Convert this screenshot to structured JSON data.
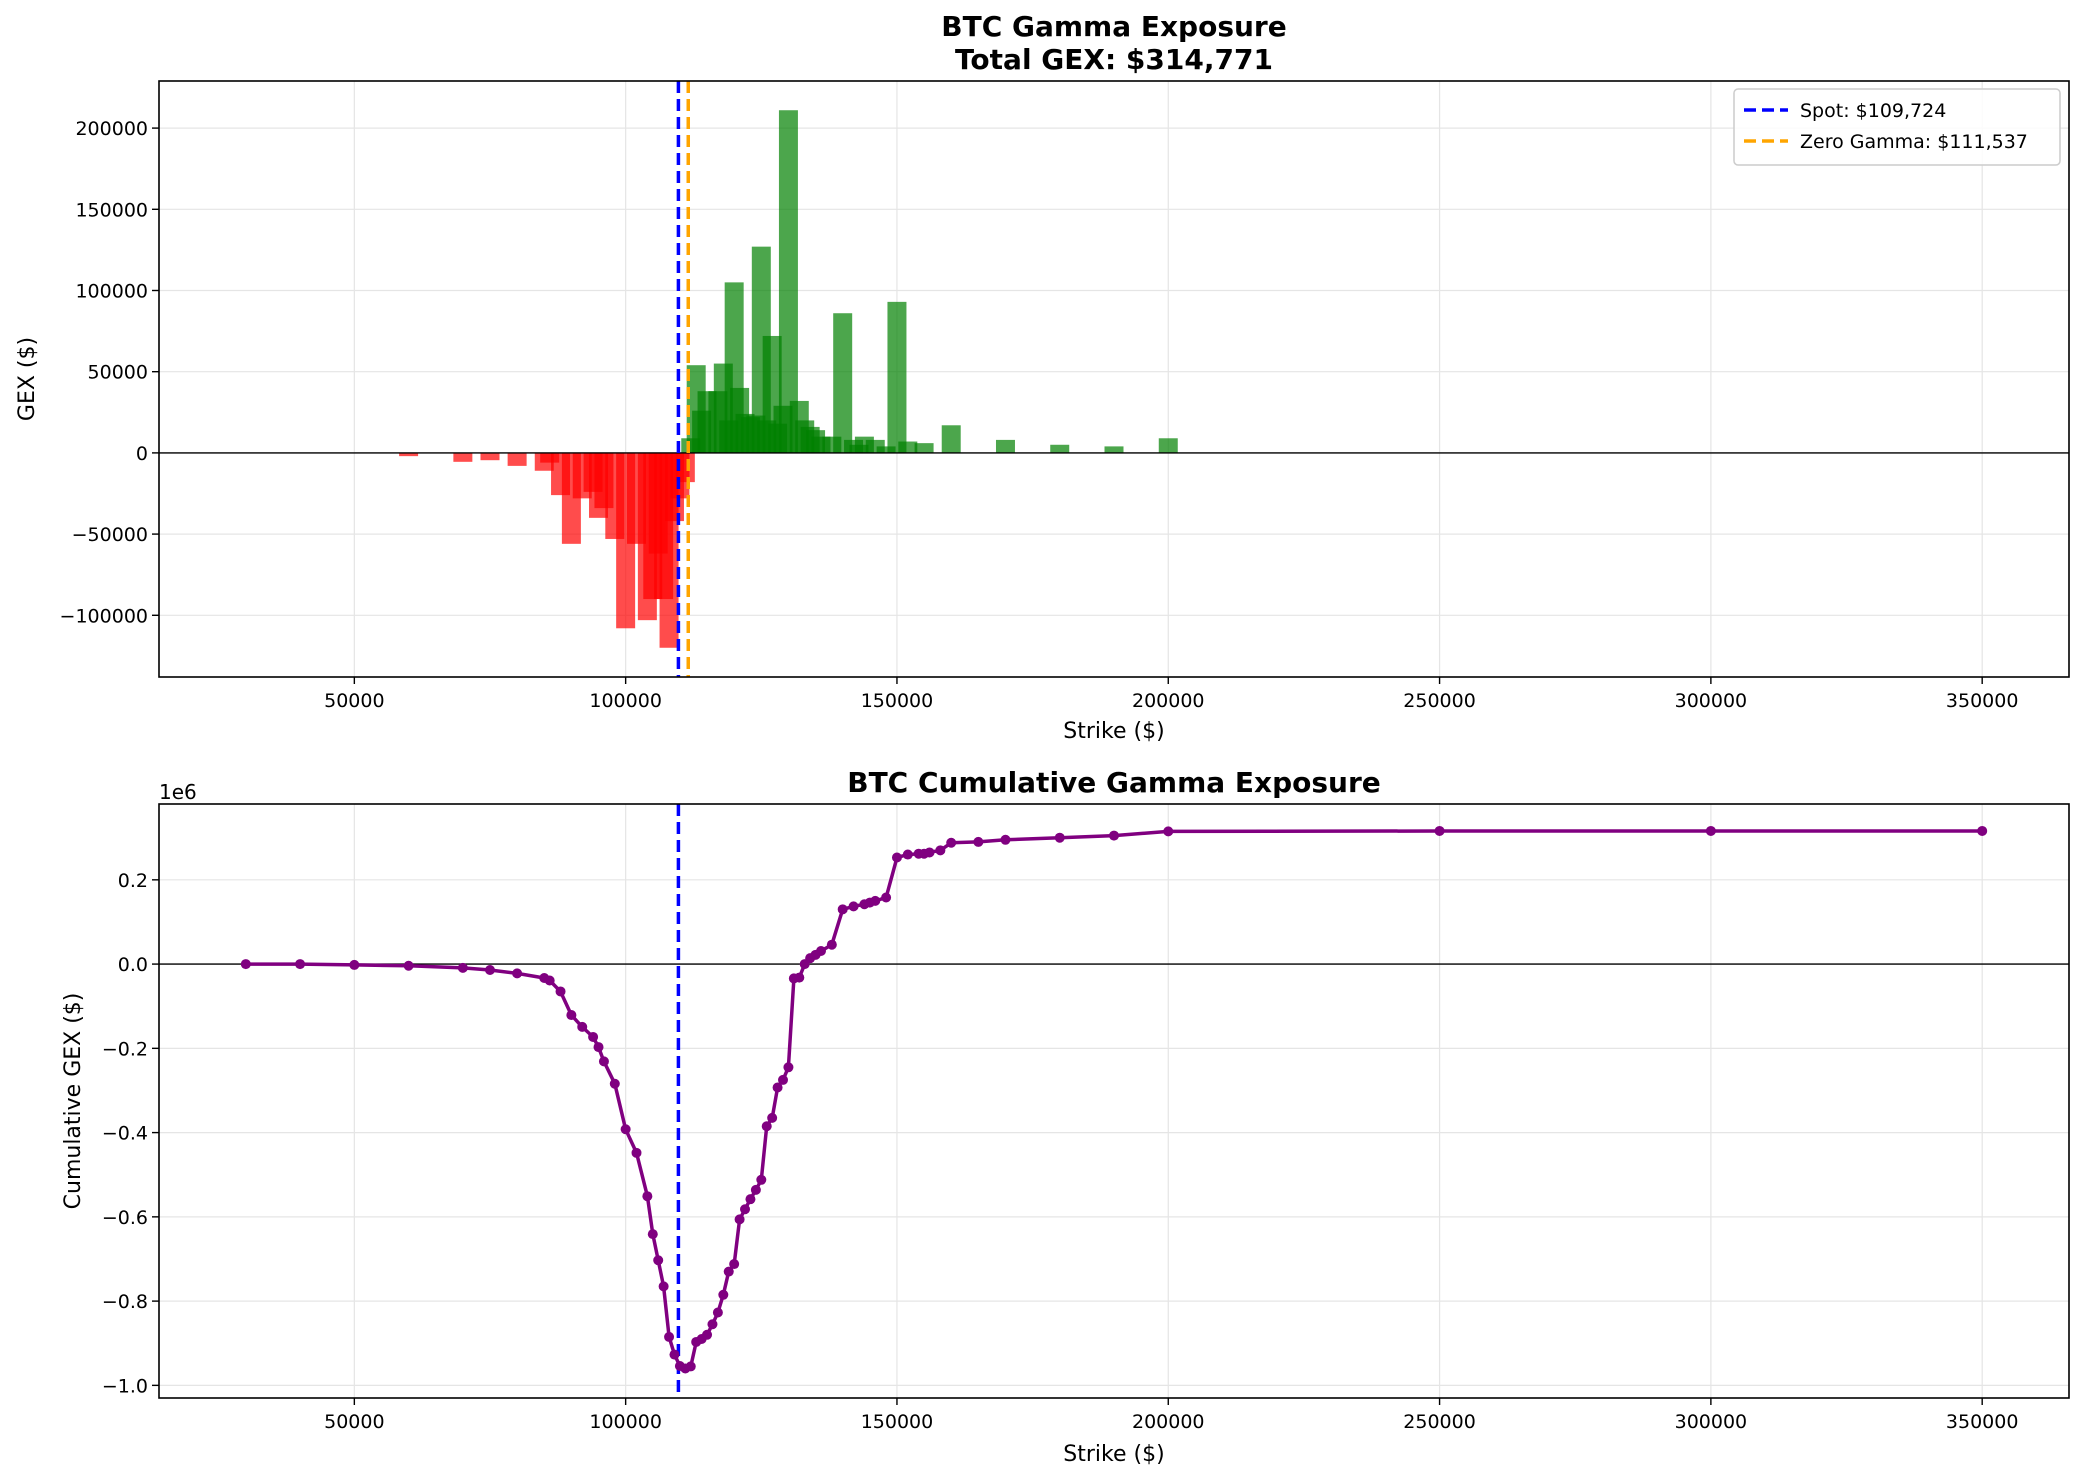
{
  "chart_data": [
    {
      "type": "bar",
      "title": "BTC Gamma Exposure",
      "subtitle": "Total GEX: $314,771",
      "xlabel": "Strike ($)",
      "ylabel": "GEX ($)",
      "xlim": [
        14000,
        366000
      ],
      "ylim": [
        -138000,
        229000
      ],
      "xticks": [
        50000,
        100000,
        150000,
        200000,
        250000,
        300000,
        350000
      ],
      "yticks": [
        -100000,
        -50000,
        0,
        50000,
        100000,
        150000,
        200000
      ],
      "grid": true,
      "legend_position": "top-right",
      "bar_width": 3500,
      "positive_color": "#008000",
      "negative_color": "#ff0000",
      "bars": [
        {
          "x": 60000,
          "y": -2000
        },
        {
          "x": 70000,
          "y": -5500
        },
        {
          "x": 75000,
          "y": -4500
        },
        {
          "x": 80000,
          "y": -8000
        },
        {
          "x": 85000,
          "y": -11000
        },
        {
          "x": 86000,
          "y": -6000
        },
        {
          "x": 88000,
          "y": -26000
        },
        {
          "x": 90000,
          "y": -56000
        },
        {
          "x": 92000,
          "y": -28000
        },
        {
          "x": 94000,
          "y": -24000
        },
        {
          "x": 95000,
          "y": -40000
        },
        {
          "x": 96000,
          "y": -34000
        },
        {
          "x": 98000,
          "y": -53000
        },
        {
          "x": 100000,
          "y": -108000
        },
        {
          "x": 102000,
          "y": -56000
        },
        {
          "x": 104000,
          "y": -103000
        },
        {
          "x": 105000,
          "y": -90000
        },
        {
          "x": 106000,
          "y": -62000
        },
        {
          "x": 107000,
          "y": -90000
        },
        {
          "x": 108000,
          "y": -120000
        },
        {
          "x": 109000,
          "y": -42000
        },
        {
          "x": 110000,
          "y": -28000
        },
        {
          "x": 111000,
          "y": -18000
        },
        {
          "x": 112000,
          "y": 9000
        },
        {
          "x": 113000,
          "y": 54000
        },
        {
          "x": 114000,
          "y": 26000
        },
        {
          "x": 115000,
          "y": 38000
        },
        {
          "x": 117000,
          "y": 38000
        },
        {
          "x": 118000,
          "y": 55000
        },
        {
          "x": 119000,
          "y": 20000
        },
        {
          "x": 120000,
          "y": 105000
        },
        {
          "x": 121000,
          "y": 40000
        },
        {
          "x": 122000,
          "y": 24000
        },
        {
          "x": 123000,
          "y": 22000
        },
        {
          "x": 124000,
          "y": 23000
        },
        {
          "x": 125000,
          "y": 127000
        },
        {
          "x": 126000,
          "y": 20000
        },
        {
          "x": 127000,
          "y": 72000
        },
        {
          "x": 128000,
          "y": 18000
        },
        {
          "x": 129000,
          "y": 29000
        },
        {
          "x": 130000,
          "y": 211000
        },
        {
          "x": 132000,
          "y": 32000
        },
        {
          "x": 133000,
          "y": 20000
        },
        {
          "x": 134000,
          "y": 16000
        },
        {
          "x": 135000,
          "y": 14000
        },
        {
          "x": 136000,
          "y": 10000
        },
        {
          "x": 138000,
          "y": 10000
        },
        {
          "x": 140000,
          "y": 86000
        },
        {
          "x": 142000,
          "y": 8000
        },
        {
          "x": 143000,
          "y": 5000
        },
        {
          "x": 144000,
          "y": 10000
        },
        {
          "x": 146000,
          "y": 8000
        },
        {
          "x": 148000,
          "y": 4000
        },
        {
          "x": 150000,
          "y": 93000
        },
        {
          "x": 152000,
          "y": 7000
        },
        {
          "x": 155000,
          "y": 6000
        },
        {
          "x": 160000,
          "y": 17000
        },
        {
          "x": 170000,
          "y": 8000
        },
        {
          "x": 180000,
          "y": 5000
        },
        {
          "x": 190000,
          "y": 4000
        },
        {
          "x": 200000,
          "y": 9000
        }
      ],
      "vlines": [
        {
          "x": 109724,
          "color": "#0000ff",
          "label": "Spot: $109,724"
        },
        {
          "x": 111537,
          "color": "#ffa500",
          "label": "Zero Gamma: $111,537"
        }
      ]
    },
    {
      "type": "line",
      "title": "BTC Cumulative Gamma Exposure",
      "xlabel": "Strike ($)",
      "ylabel": "Cumulative GEX ($)",
      "y_offset_label": "1e6",
      "xlim": [
        14000,
        366000
      ],
      "ylim": [
        -1.03,
        0.38
      ],
      "xticks": [
        50000,
        100000,
        150000,
        200000,
        250000,
        300000,
        350000
      ],
      "yticks": [
        -1.0,
        -0.8,
        -0.6,
        -0.4,
        -0.2,
        0.0,
        0.2
      ],
      "ytick_labels": [
        "−1.0",
        "−0.8",
        "−0.6",
        "−0.4",
        "−0.2",
        "0.0",
        "0.2"
      ],
      "grid": true,
      "line_color": "#800080",
      "spot_x": 109724,
      "spot_color": "#0000ff",
      "x": [
        30000,
        40000,
        50000,
        60000,
        70000,
        75000,
        80000,
        85000,
        86000,
        88000,
        90000,
        92000,
        94000,
        95000,
        96000,
        98000,
        100000,
        102000,
        104000,
        105000,
        106000,
        107000,
        108000,
        109000,
        110000,
        111000,
        112000,
        113000,
        114000,
        115000,
        116000,
        117000,
        118000,
        119000,
        120000,
        121000,
        122000,
        123000,
        124000,
        125000,
        126000,
        127000,
        128000,
        129000,
        130000,
        131000,
        132000,
        133000,
        134000,
        135000,
        136000,
        138000,
        140000,
        142000,
        144000,
        145000,
        146000,
        148000,
        150000,
        152000,
        154000,
        155000,
        156000,
        158000,
        160000,
        165000,
        170000,
        180000,
        190000,
        200000,
        250000,
        300000,
        350000
      ],
      "y": [
        0.0,
        0.0,
        -0.002,
        -0.004,
        -0.009,
        -0.014,
        -0.022,
        -0.033,
        -0.039,
        -0.065,
        -0.121,
        -0.149,
        -0.173,
        -0.197,
        -0.231,
        -0.284,
        -0.392,
        -0.448,
        -0.551,
        -0.641,
        -0.703,
        -0.765,
        -0.885,
        -0.927,
        -0.954,
        -0.96,
        -0.955,
        -0.897,
        -0.89,
        -0.88,
        -0.855,
        -0.827,
        -0.785,
        -0.73,
        -0.712,
        -0.606,
        -0.582,
        -0.558,
        -0.536,
        -0.512,
        -0.385,
        -0.365,
        -0.293,
        -0.275,
        -0.245,
        -0.034,
        -0.032,
        0.0,
        0.014,
        0.022,
        0.031,
        0.046,
        0.13,
        0.137,
        0.142,
        0.146,
        0.15,
        0.158,
        0.253,
        0.26,
        0.262,
        0.262,
        0.265,
        0.27,
        0.288,
        0.29,
        0.295,
        0.3,
        0.305,
        0.315,
        0.316,
        0.316,
        0.316
      ]
    }
  ]
}
